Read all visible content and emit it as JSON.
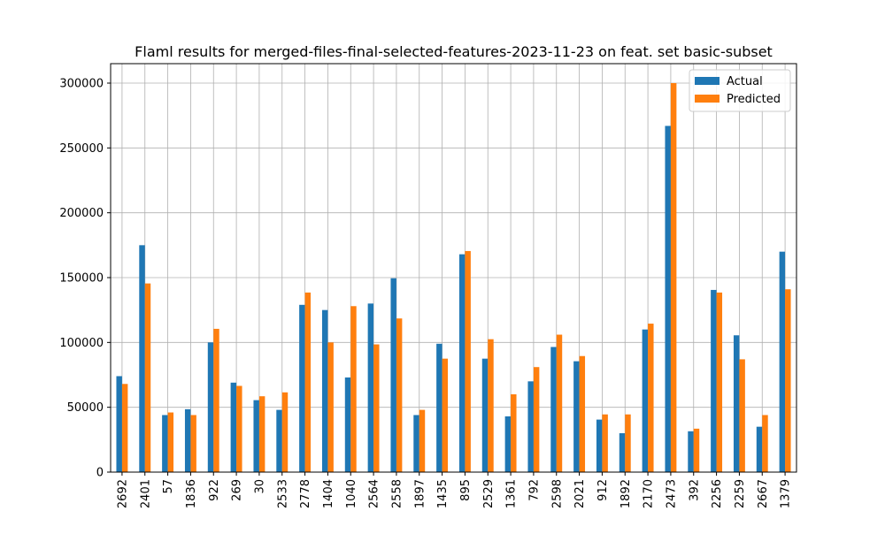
{
  "chart_data": {
    "type": "bar",
    "title": "Flaml results for merged-files-final-selected-features-2023-11-23 on feat. set basic-subset",
    "xlabel": "",
    "ylabel": "",
    "categories": [
      "2692",
      "2401",
      "57",
      "1836",
      "922",
      "269",
      "30",
      "2533",
      "2778",
      "1404",
      "1040",
      "2564",
      "2558",
      "1897",
      "1435",
      "895",
      "2529",
      "1361",
      "792",
      "2598",
      "2021",
      "912",
      "1892",
      "2170",
      "2473",
      "392",
      "2256",
      "2259",
      "2667",
      "1379"
    ],
    "series": [
      {
        "name": "Actual",
        "color": "#1f77b4",
        "values": [
          74000,
          175000,
          44000,
          48500,
          100000,
          69000,
          55500,
          48000,
          129000,
          125000,
          73000,
          130000,
          149500,
          44000,
          99000,
          168000,
          87500,
          43000,
          70000,
          96500,
          85500,
          40500,
          30000,
          110000,
          267000,
          31500,
          140500,
          105500,
          35000,
          170000
        ]
      },
      {
        "name": "Predicted",
        "color": "#ff7f0e",
        "values": [
          68000,
          145500,
          46000,
          44000,
          110500,
          66500,
          58500,
          61500,
          138500,
          100000,
          128000,
          98500,
          118500,
          48000,
          87500,
          170500,
          102500,
          60000,
          81000,
          106000,
          89500,
          44500,
          44500,
          114500,
          300000,
          33500,
          138500,
          87000,
          44000,
          141000
        ]
      }
    ],
    "ylim": [
      0,
      315000
    ],
    "yticks": [
      0,
      50000,
      100000,
      150000,
      200000,
      250000,
      300000
    ],
    "grid": true,
    "legend_position": "top-right"
  }
}
